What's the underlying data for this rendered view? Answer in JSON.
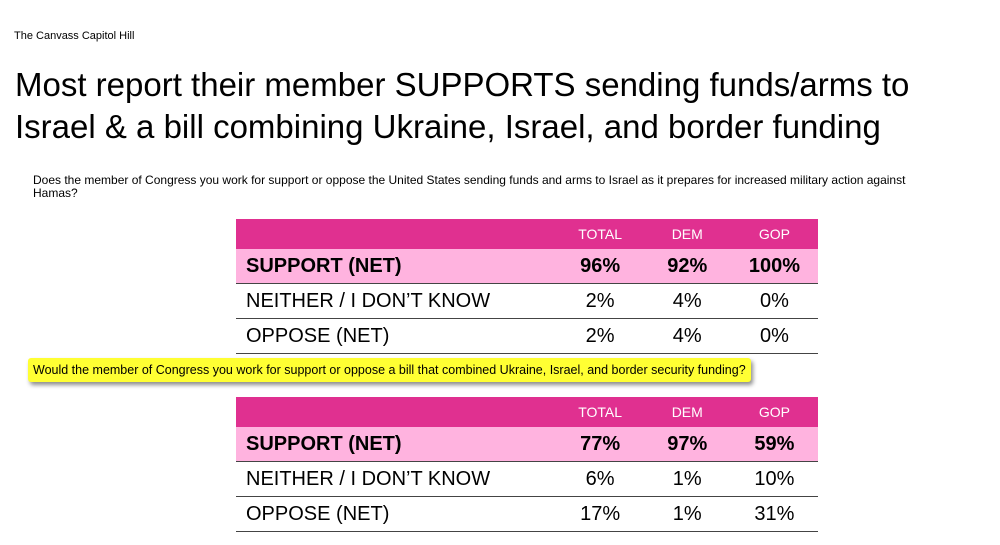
{
  "brand": "The Canvass Capitol Hill",
  "title": "Most report their member SUPPORTS sending funds/arms to Israel & a bill combining Ukraine, Israel, and border funding",
  "chart_data": [
    {
      "type": "table",
      "question": "Does the member of Congress you work for support or oppose the United States sending funds and arms to Israel as it prepares for increased military action against Hamas?",
      "columns": [
        "TOTAL",
        "DEM",
        "GOP"
      ],
      "rows": [
        {
          "label": "SUPPORT (NET)",
          "values": [
            "96%",
            "92%",
            "100%"
          ]
        },
        {
          "label": "NEITHER / I DON’T KNOW",
          "values": [
            "2%",
            "4%",
            "0%"
          ]
        },
        {
          "label": "OPPOSE (NET)",
          "values": [
            "2%",
            "4%",
            "0%"
          ]
        }
      ]
    },
    {
      "type": "table",
      "question": "Would the member of Congress you work for support or oppose a bill that combined Ukraine, Israel, and border security funding?",
      "columns": [
        "TOTAL",
        "DEM",
        "GOP"
      ],
      "rows": [
        {
          "label": "SUPPORT (NET)",
          "values": [
            "77%",
            "97%",
            "59%"
          ]
        },
        {
          "label": "NEITHER / I DON’T KNOW",
          "values": [
            "6%",
            "1%",
            "10%"
          ]
        },
        {
          "label": "OPPOSE (NET)",
          "values": [
            "17%",
            "1%",
            "31%"
          ]
        }
      ]
    }
  ],
  "colors": {
    "header": "#e03090",
    "highlight_row": "#ffb3df",
    "question_highlight": "#ffff33"
  }
}
